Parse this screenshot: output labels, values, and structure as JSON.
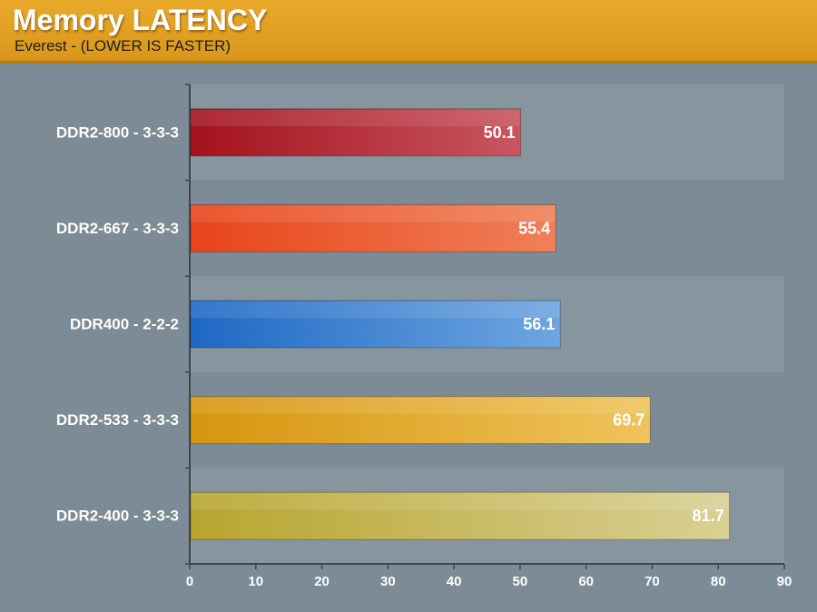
{
  "header": {
    "title": "Memory LATENCY",
    "subtitle": "Everest - (LOWER IS FASTER)"
  },
  "colors": {
    "header_bg": "#e0a022",
    "plot_bg": "#7c8b95",
    "band_bg": "#86959e",
    "text": "#ffffff"
  },
  "chart_data": {
    "type": "bar",
    "orientation": "horizontal",
    "title": "Memory LATENCY",
    "subtitle": "Everest - (LOWER IS FASTER)",
    "categories": [
      "DDR2-800 - 3-3-3",
      "DDR2-667 - 3-3-3",
      "DDR400 - 2-2-2",
      "DDR2-533 - 3-3-3",
      "DDR2-400 - 3-3-3"
    ],
    "values": [
      50.1,
      55.4,
      56.1,
      69.7,
      81.7
    ],
    "value_labels": [
      "50.1",
      "55.4",
      "56.1",
      "69.7",
      "81.7"
    ],
    "bar_colors": [
      [
        "#a3121c",
        "#c95560"
      ],
      [
        "#e8441a",
        "#f08058"
      ],
      [
        "#1e68c4",
        "#6fa6e0"
      ],
      [
        "#d6950e",
        "#efc45c"
      ],
      [
        "#b8a52e",
        "#d9d095"
      ]
    ],
    "xlim": [
      0,
      90
    ],
    "xticks": [
      "0",
      "10",
      "20",
      "30",
      "40",
      "50",
      "60",
      "70",
      "80",
      "90"
    ],
    "xlabel": "",
    "ylabel": "",
    "grid": false,
    "legend": "none"
  }
}
